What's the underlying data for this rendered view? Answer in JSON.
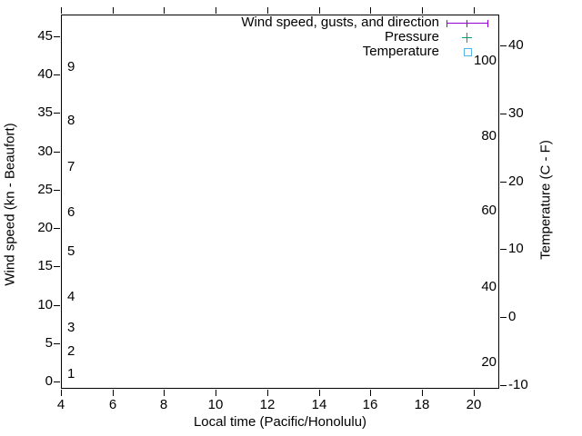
{
  "figure": {
    "background": "#ffffff",
    "border_color": "#000000",
    "text_color": "#000000"
  },
  "legend": {
    "position": "top-right-inside",
    "items": [
      {
        "label": "Wind speed, gusts, and direction",
        "marker": "errorbar",
        "color": "#9400d3"
      },
      {
        "label": "Pressure",
        "marker": "plus",
        "color": "#009e73"
      },
      {
        "label": "Temperature",
        "marker": "square-open",
        "color": "#56b4e9"
      }
    ]
  },
  "chart_data": {
    "type": "line",
    "title": "",
    "xlabel": "Local time (Pacific/Honolulu)",
    "ylabel": "Wind speed (kn - Beaufort)",
    "y2label": "Temperature (C - F)",
    "xlim": [
      4,
      21
    ],
    "xticks": [
      4,
      6,
      8,
      10,
      12,
      14,
      16,
      18,
      20
    ],
    "ylim": [
      -0.9,
      47.8
    ],
    "yticks": [
      0,
      5,
      10,
      15,
      20,
      25,
      30,
      35,
      40,
      45
    ],
    "y2lim": [
      -10.6,
      44.6
    ],
    "y2ticks": [
      -10,
      0,
      10,
      20,
      30,
      40
    ],
    "beaufort_labels": [
      {
        "label": "1",
        "kn": 1
      },
      {
        "label": "2",
        "kn": 4
      },
      {
        "label": "3",
        "kn": 7
      },
      {
        "label": "4",
        "kn": 11
      },
      {
        "label": "5",
        "kn": 17
      },
      {
        "label": "6",
        "kn": 22
      },
      {
        "label": "7",
        "kn": 28
      },
      {
        "label": "8",
        "kn": 34
      },
      {
        "label": "9",
        "kn": 41
      }
    ],
    "fahrenheit_labels": [
      {
        "label": "20",
        "c": -6.7
      },
      {
        "label": "40",
        "c": 4.4
      },
      {
        "label": "60",
        "c": 15.6
      },
      {
        "label": "80",
        "c": 26.7
      },
      {
        "label": "100",
        "c": 37.8
      }
    ],
    "grid": false,
    "tics_direction": "out",
    "legend_position": "top-right",
    "series": [
      {
        "name": "Wind speed, gusts, and direction",
        "axis": "y1",
        "color": "#9400d3",
        "style": "errorbar",
        "points": []
      },
      {
        "name": "Pressure",
        "axis": "y2",
        "color": "#009e73",
        "style": "plus",
        "points": []
      },
      {
        "name": "Temperature",
        "axis": "y2",
        "color": "#56b4e9",
        "style": "square-open",
        "points": []
      }
    ]
  }
}
